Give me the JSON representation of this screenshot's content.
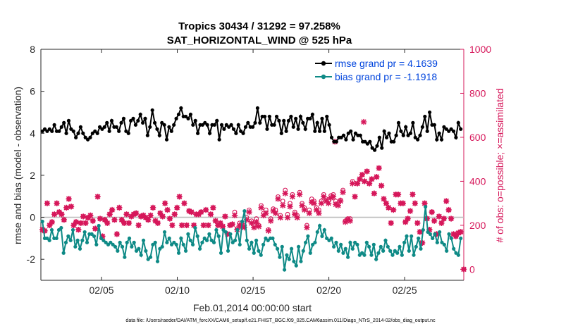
{
  "chart_data": {
    "type": "line",
    "title": "Tropics 30434 / 31292 = 97.258%",
    "subtitle": "SAT_HORIZONTAL_WIND @ 525 hPa",
    "xlabel": "Feb.01,2014 00:00:00 start",
    "ylabel": "rmse and bias (model - observation)",
    "ylabel_right": "# of obs: o=possible; ×=assimilated",
    "xlim": [
      1,
      28.9
    ],
    "ylim": [
      -3,
      8
    ],
    "ylim_right": [
      -50,
      1000
    ],
    "x_ticks": [
      5,
      10,
      15,
      20,
      25
    ],
    "x_tick_labels": [
      "02/05",
      "02/10",
      "02/15",
      "02/20",
      "02/25"
    ],
    "y_ticks": [
      -2,
      0,
      2,
      4,
      6,
      8
    ],
    "y_tick_labels": [
      "-2",
      "0",
      "2",
      "4",
      "6",
      "8"
    ],
    "y_ticks_right": [
      0,
      200,
      400,
      600,
      800,
      1000
    ],
    "y_tick_labels_right": [
      "0",
      "200",
      "400",
      "600",
      "800",
      "1000"
    ],
    "zero_line": 0,
    "series": [
      {
        "name": "rmse grand pr = 4.1639",
        "axis": "left",
        "marker": "dot-line",
        "color": "#000000",
        "values": [
          4.1,
          4.2,
          4.1,
          4.2,
          4.1,
          4.4,
          4.1,
          4.1,
          4.3,
          4.5,
          4.0,
          4.6,
          4.2,
          4.1,
          3.8,
          4.0,
          4.3,
          4.0,
          3.8,
          3.7,
          3.8,
          4.0,
          4.1,
          4.0,
          4.3,
          4.2,
          4.3,
          4.5,
          4.1,
          4.6,
          4.3,
          4.3,
          4.1,
          4.5,
          4.7,
          4.1,
          4.0,
          4.6,
          4.7,
          4.4,
          4.6,
          4.9,
          4.5,
          4.7,
          3.9,
          4.3,
          5.1,
          4.5,
          4.2,
          3.9,
          4.5,
          4.4,
          3.7,
          4.3,
          4.1,
          4.4,
          4.7,
          4.9,
          5.2,
          4.8,
          4.8,
          4.7,
          4.9,
          4.4,
          4.6,
          4.0,
          4.4,
          4.4,
          4.5,
          4.4,
          4.0,
          4.4,
          4.4,
          4.6,
          3.7,
          4.4,
          4.2,
          4.4,
          4.3,
          4.4,
          4.2,
          4.0,
          4.4,
          4.1,
          4.0,
          4.3,
          4.5,
          4.3,
          4.3,
          4.5,
          5.2,
          4.5,
          4.8,
          4.8,
          4.2,
          4.8,
          4.4,
          4.4,
          4.8,
          4.6,
          4.0,
          4.6,
          4.1,
          4.6,
          4.8,
          4.3,
          4.7,
          4.2,
          4.8,
          4.5,
          4.2,
          4.7,
          4.7,
          4.9,
          4.1,
          4.5,
          4.1,
          4.7,
          4.1,
          4.8,
          4.4,
          3.8,
          3.6,
          3.6,
          3.8,
          3.8,
          3.9,
          3.7,
          4.0,
          4.1,
          3.7,
          4.0,
          3.9,
          3.9,
          3.6,
          3.6,
          3.5,
          3.6,
          3.3,
          3.2,
          3.4,
          3.8,
          3.3,
          4.1,
          3.8,
          4.0,
          3.6,
          3.6,
          3.9,
          4.5,
          4.1,
          3.9,
          4.3,
          3.9,
          4.0,
          4.5,
          3.8,
          3.7,
          3.9,
          4.3,
          4.8,
          4.1,
          5.0,
          4.4,
          4.4,
          3.7,
          4.0,
          3.7,
          4.3,
          4.2,
          4.1,
          4.2,
          4.1,
          3.8,
          4.5,
          4.2
        ]
      },
      {
        "name": "bias grand pr = -1.1918",
        "axis": "left",
        "marker": "dot-line",
        "color": "#0e8a86",
        "values": [
          -0.2,
          -1.0,
          -1.0,
          -1.1,
          -0.6,
          -1.0,
          -1.0,
          -0.6,
          -0.5,
          -1.7,
          -1.2,
          -0.9,
          -1.1,
          -0.6,
          -1.4,
          -1.1,
          -1.5,
          -1.1,
          -0.7,
          -1.2,
          -0.8,
          -0.8,
          -0.9,
          -1.3,
          -0.4,
          -1.0,
          -1.1,
          -1.2,
          -1.3,
          -1.2,
          -1.3,
          -1.4,
          -1.6,
          -1.2,
          -1.4,
          -1.9,
          -1.2,
          -1.0,
          -1.4,
          -1.2,
          -1.6,
          -1.5,
          -1.8,
          -1.1,
          -1.6,
          -2.0,
          -1.9,
          -1.3,
          -1.2,
          -2.1,
          -1.5,
          -1.4,
          -0.7,
          -1.2,
          -1.0,
          -1.3,
          -1.2,
          -1.3,
          -1.7,
          -1.0,
          -1.3,
          -1.6,
          -0.8,
          -1.1,
          -1.3,
          -0.5,
          -0.9,
          -1.5,
          -1.2,
          -1.0,
          -1.1,
          -0.8,
          -1.1,
          -1.2,
          -0.6,
          -0.9,
          -1.7,
          -0.6,
          -0.7,
          -1.6,
          -0.8,
          -1.2,
          -1.1,
          -0.6,
          -1.3,
          -0.2,
          0.3,
          -1.1,
          -1.5,
          -1.2,
          -1.7,
          -1.1,
          -1.6,
          -1.8,
          -1.3,
          -1.0,
          -1.1,
          -1.0,
          -1.0,
          -1.3,
          -1.5,
          -1.9,
          -1.4,
          -2.5,
          -1.8,
          -2.0,
          -1.5,
          -2.1,
          -2.3,
          -1.4,
          -2.1,
          -1.6,
          -1.2,
          -0.9,
          -1.7,
          -1.3,
          -1.2,
          -0.7,
          -0.4,
          -0.9,
          -0.6,
          -1.0,
          -1.1,
          -1.0,
          -1.4,
          -1.2,
          -1.6,
          -1.3,
          -1.7,
          -1.5,
          -1.9,
          -1.2,
          -1.5,
          -1.2,
          -1.3,
          -1.8,
          -1.7,
          -1.8,
          -1.2,
          -1.4,
          -1.8,
          -1.3,
          -2.0,
          -1.7,
          -1.4,
          -1.6,
          -1.1,
          -1.4,
          -1.6,
          -1.8,
          -1.6,
          -1.7,
          -1.4,
          -1.8,
          -1.2,
          -0.9,
          -1.6,
          -0.9,
          -1.8,
          -1.4,
          -1.0,
          -1.5,
          -0.6,
          0.5,
          -0.7,
          -0.8,
          -1.0,
          -0.8,
          -1.2,
          -0.7,
          -1.2,
          -1.3,
          -1.6,
          -0.8,
          -1.0,
          -1.5,
          -1.7,
          -1.8,
          -1.0
        ]
      },
      {
        "name": "possible",
        "axis": "right",
        "marker": "o",
        "color": "#d6175a",
        "values": [
          180,
          175,
          300,
          200,
          215,
          250,
          300,
          260,
          250,
          225,
          280,
          320,
          285,
          200,
          215,
          180,
          210,
          240,
          210,
          235,
          245,
          220,
          185,
          330,
          230,
          150,
          225,
          210,
          250,
          270,
          225,
          160,
          280,
          225,
          210,
          250,
          210,
          240,
          250,
          255,
          200,
          240,
          245,
          235,
          225,
          245,
          280,
          220,
          210,
          255,
          240,
          300,
          270,
          230,
          200,
          250,
          280,
          330,
          200,
          300,
          200,
          265,
          260,
          200,
          250,
          250,
          260,
          200,
          270,
          200,
          250,
          280,
          220,
          200,
          210,
          195,
          240,
          160,
          200,
          205,
          260,
          185,
          210,
          205,
          200,
          235,
          270,
          220,
          200,
          230,
          200,
          290,
          255,
          270,
          180,
          230,
          275,
          270,
          330,
          245,
          310,
          360,
          250,
          300,
          340,
          260,
          245,
          350,
          300,
          280,
          200,
          270,
          320,
          310,
          280,
          270,
          310,
          340,
          320,
          315,
          335,
          340,
          310,
          300,
          315,
          360,
          220,
          230,
          230,
          400,
          330,
          390,
          410,
          430,
          400,
          445,
          390,
          410,
          345,
          420,
          460,
          380,
          320,
          300,
          280,
          210,
          270,
          340,
          340,
          300,
          300,
          215,
          230,
          265,
          340,
          300,
          210,
          170,
          120,
          300,
          230,
          180,
          260,
          220,
          160,
          240,
          210,
          230,
          310,
          270,
          230,
          160,
          150,
          165,
          170
        ]
      },
      {
        "name": "assimilated",
        "axis": "right",
        "marker": "x",
        "color": "#d6175a",
        "values": [
          180,
          175,
          300,
          200,
          215,
          250,
          300,
          260,
          250,
          225,
          280,
          320,
          285,
          200,
          215,
          180,
          210,
          240,
          210,
          235,
          245,
          220,
          185,
          330,
          230,
          150,
          225,
          210,
          250,
          270,
          225,
          160,
          280,
          225,
          210,
          250,
          210,
          240,
          250,
          255,
          200,
          240,
          245,
          235,
          225,
          245,
          280,
          220,
          210,
          255,
          240,
          300,
          270,
          230,
          200,
          250,
          280,
          330,
          200,
          300,
          200,
          265,
          260,
          200,
          250,
          250,
          260,
          200,
          270,
          200,
          250,
          280,
          220,
          200,
          210,
          195,
          240,
          160,
          200,
          205,
          245,
          180,
          200,
          195,
          190,
          225,
          260,
          210,
          190,
          215,
          195,
          280,
          245,
          255,
          175,
          220,
          265,
          255,
          320,
          235,
          290,
          345,
          235,
          285,
          330,
          250,
          235,
          340,
          290,
          270,
          190,
          255,
          305,
          300,
          270,
          255,
          300,
          330,
          310,
          300,
          325,
          330,
          295,
          290,
          310,
          350,
          215,
          225,
          220,
          390,
          330,
          390,
          410,
          430,
          400,
          445,
          390,
          410,
          345,
          420,
          460,
          380,
          320,
          300,
          280,
          210,
          270,
          340,
          340,
          300,
          300,
          215,
          230,
          265,
          340,
          300,
          210,
          170,
          120,
          300,
          230,
          180,
          260,
          220,
          160,
          240,
          210,
          230,
          310,
          270,
          230,
          160,
          150,
          165,
          170
        ]
      }
    ],
    "extra_markers": [
      {
        "name": "assimilated-high",
        "x": 20.4,
        "y": 580
      },
      {
        "name": "assimilated-high",
        "x": 22.3,
        "y": 670
      },
      {
        "name": "possible-zero",
        "x": 28.9,
        "y": 0
      }
    ],
    "legend_position": "top-right"
  },
  "footer": "data file: /Users/raeder/DAI/ATM_forcXX/CAM6_setup/f.e21.FHIST_BGC.f09_025.CAM6assim.011/Diags_NTrS_2014-02/obs_diag_output.nc"
}
